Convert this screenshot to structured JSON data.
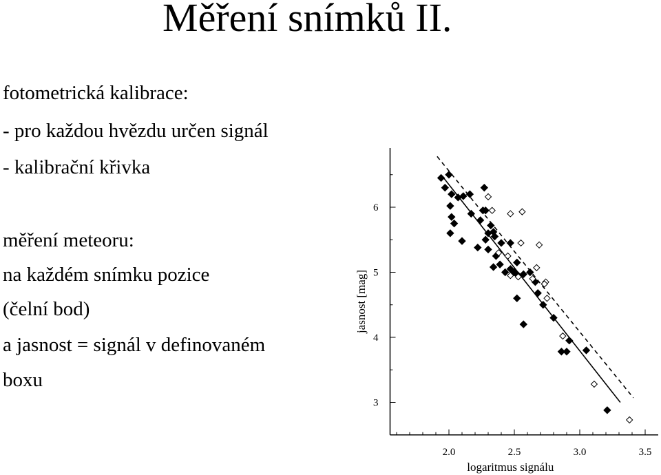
{
  "slide": {
    "title": "Měření snímků II.",
    "lines": [
      "fotometrická kalibrace:",
      "- pro každou hvězdu určen signál",
      "- kalibrační křivka",
      "měření meteoru:",
      "na každém snímku pozice",
      "(čelní bod)",
      "a jasnost = signál v definovaném",
      "boxu"
    ]
  },
  "chart_data": {
    "type": "scatter",
    "xlabel": "logaritmus signálu",
    "ylabel": "jasnost [mag]",
    "xlim": [
      1.55,
      3.6
    ],
    "ylim": [
      2.5,
      7.0
    ],
    "x_ticks": [
      "2.0",
      "2.5",
      "3.0",
      "3.5"
    ],
    "y_ticks": [
      "6",
      "5",
      "4",
      "3"
    ],
    "series": [
      {
        "marker": "filled-diamond",
        "points": [
          [
            1.94,
            6.45
          ],
          [
            2.0,
            6.5
          ],
          [
            1.97,
            6.3
          ],
          [
            2.02,
            6.2
          ],
          [
            2.07,
            6.15
          ],
          [
            2.11,
            6.17
          ],
          [
            2.16,
            6.2
          ],
          [
            2.27,
            6.3
          ],
          [
            2.01,
            6.02
          ],
          [
            2.02,
            5.85
          ],
          [
            2.04,
            5.75
          ],
          [
            2.01,
            5.6
          ],
          [
            2.1,
            5.48
          ],
          [
            2.17,
            5.9
          ],
          [
            2.26,
            5.95
          ],
          [
            2.28,
            5.95
          ],
          [
            2.24,
            5.8
          ],
          [
            2.32,
            5.72
          ],
          [
            2.3,
            5.6
          ],
          [
            2.34,
            5.62
          ],
          [
            2.28,
            5.5
          ],
          [
            2.35,
            5.55
          ],
          [
            2.4,
            5.45
          ],
          [
            2.47,
            5.45
          ],
          [
            2.22,
            5.38
          ],
          [
            2.3,
            5.35
          ],
          [
            2.36,
            5.25
          ],
          [
            2.39,
            5.12
          ],
          [
            2.34,
            5.08
          ],
          [
            2.43,
            5.0
          ],
          [
            2.47,
            5.05
          ],
          [
            2.5,
            5.0
          ],
          [
            2.53,
            4.95
          ],
          [
            2.57,
            4.97
          ],
          [
            2.62,
            5.0
          ],
          [
            2.52,
            5.15
          ],
          [
            2.66,
            4.85
          ],
          [
            2.68,
            4.68
          ],
          [
            2.72,
            4.5
          ],
          [
            2.52,
            4.6
          ],
          [
            2.57,
            4.2
          ],
          [
            2.8,
            4.3
          ],
          [
            2.92,
            3.95
          ],
          [
            2.86,
            3.78
          ],
          [
            2.9,
            3.78
          ],
          [
            3.05,
            3.8
          ],
          [
            3.21,
            2.88
          ]
        ]
      },
      {
        "marker": "open-diamond",
        "points": [
          [
            2.3,
            6.16
          ],
          [
            2.33,
            5.95
          ],
          [
            2.47,
            5.9
          ],
          [
            2.56,
            5.93
          ],
          [
            2.55,
            5.45
          ],
          [
            2.69,
            5.42
          ],
          [
            2.38,
            5.3
          ],
          [
            2.45,
            5.25
          ],
          [
            2.67,
            5.07
          ],
          [
            2.47,
            4.95
          ],
          [
            2.53,
            4.93
          ],
          [
            2.64,
            4.9
          ],
          [
            2.74,
            4.85
          ],
          [
            2.73,
            4.82
          ],
          [
            2.75,
            4.6
          ],
          [
            2.87,
            4.02
          ],
          [
            3.11,
            3.28
          ],
          [
            3.38,
            2.73
          ]
        ]
      }
    ],
    "lines": [
      {
        "style": "solid",
        "x": [
          1.96,
          3.31
        ],
        "y": [
          6.45,
          3.0
        ]
      },
      {
        "style": "dashed",
        "x": [
          1.91,
          3.41
        ],
        "y": [
          6.78,
          3.07
        ]
      }
    ]
  }
}
